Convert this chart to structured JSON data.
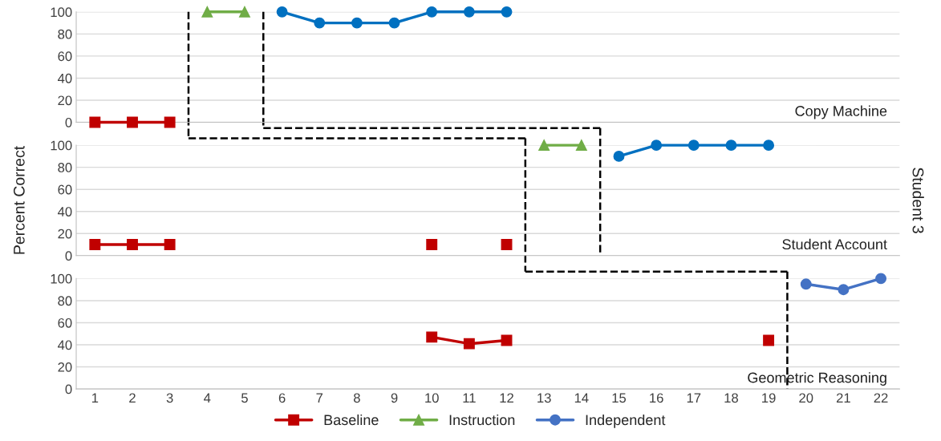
{
  "chart_data": [
    {
      "type": "line",
      "xlim": [
        0.5,
        22.5
      ],
      "xticks": [
        1,
        2,
        3,
        4,
        5,
        6,
        7,
        8,
        9,
        10,
        11,
        12,
        13,
        14,
        15,
        16,
        17,
        18,
        19,
        20,
        21,
        22
      ],
      "ylim": [
        0,
        100
      ],
      "yticks": [
        0,
        20,
        40,
        60,
        80,
        100
      ],
      "grid": "y",
      "tick_labels": "y",
      "annotations": [
        "Copy Machine"
      ],
      "ref_lines": [
        {
          "axis": "x",
          "value": 3.5,
          "line_style": "dashed"
        },
        {
          "axis": "x",
          "value": 5.5,
          "line_style": "dashed"
        }
      ],
      "series": [
        {
          "color": "#c00000",
          "marker": "square",
          "x": [
            1,
            2,
            3
          ],
          "values": [
            0,
            0,
            0
          ]
        },
        {
          "color": "#70ad47",
          "marker": "triangle",
          "x": [
            4,
            5
          ],
          "values": [
            100,
            100
          ]
        },
        {
          "color": "#0070c0",
          "marker": "circle",
          "x": [
            6,
            7,
            8,
            9,
            10,
            11,
            12
          ],
          "values": [
            100,
            90,
            90,
            90,
            100,
            100,
            100
          ]
        }
      ]
    },
    {
      "type": "line",
      "xlim": [
        0.5,
        22.5
      ],
      "xticks": [
        1,
        2,
        3,
        4,
        5,
        6,
        7,
        8,
        9,
        10,
        11,
        12,
        13,
        14,
        15,
        16,
        17,
        18,
        19,
        20,
        21,
        22
      ],
      "ylim": [
        0,
        100
      ],
      "yticks": [
        0,
        20,
        40,
        60,
        80,
        100
      ],
      "grid": "y",
      "tick_labels": "y",
      "ylabel": "Percent Correct",
      "y2label": "Student 3",
      "annotations": [
        "Student Account"
      ],
      "ref_lines": [
        {
          "axis": "x",
          "value": 12.5,
          "line_style": "dashed"
        },
        {
          "axis": "x",
          "value": 14.5,
          "line_style": "dashed"
        }
      ],
      "series": [
        {
          "color": "#c00000",
          "marker": "square",
          "x": [
            1,
            2,
            3
          ],
          "values": [
            10,
            10,
            10
          ]
        },
        {
          "color": "#c00000",
          "marker": "square",
          "x": [
            10
          ],
          "values": [
            10
          ]
        },
        {
          "color": "#c00000",
          "marker": "square",
          "x": [
            12
          ],
          "values": [
            10
          ]
        },
        {
          "color": "#70ad47",
          "marker": "triangle",
          "x": [
            13,
            14
          ],
          "values": [
            100,
            100
          ]
        },
        {
          "color": "#0070c0",
          "marker": "circle",
          "x": [
            15,
            16,
            17,
            18,
            19
          ],
          "values": [
            90,
            100,
            100,
            100,
            100
          ]
        }
      ]
    },
    {
      "type": "line",
      "xlim": [
        0.5,
        22.5
      ],
      "xticks": [
        1,
        2,
        3,
        4,
        5,
        6,
        7,
        8,
        9,
        10,
        11,
        12,
        13,
        14,
        15,
        16,
        17,
        18,
        19,
        20,
        21,
        22
      ],
      "ylim": [
        0,
        100
      ],
      "yticks": [
        0,
        20,
        40,
        60,
        80,
        100
      ],
      "grid": "y",
      "legend": "bottom",
      "annotations": [
        "Geometric Reasoning"
      ],
      "ref_lines": [
        {
          "axis": "x",
          "value": 19.5,
          "line_style": "dashed"
        }
      ],
      "series": [
        {
          "name": "Baseline",
          "color": "#c00000",
          "marker": "square",
          "x": [
            10,
            11,
            12
          ],
          "values": [
            47,
            41,
            44
          ]
        },
        {
          "color": "#c00000",
          "marker": "square",
          "x": [
            19
          ],
          "values": [
            44
          ]
        },
        {
          "name": "Instruction",
          "color": "#70ad47",
          "marker": "triangle"
        },
        {
          "name": "Independent",
          "color": "#4472c4",
          "marker": "circle",
          "x": [
            20,
            21,
            22
          ],
          "values": [
            95,
            90,
            100
          ]
        }
      ]
    }
  ]
}
